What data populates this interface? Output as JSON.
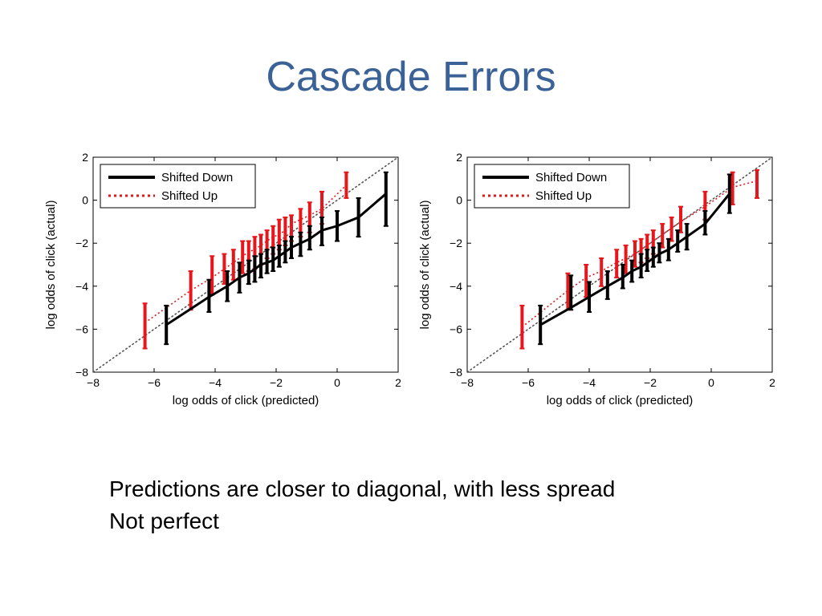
{
  "slide": {
    "title": "Cascade Errors",
    "bullets": [
      "Predictions are closer to diagonal, with less spread",
      "Not perfect"
    ]
  },
  "colors": {
    "title": "#3B6296",
    "shifted_down": "#000000",
    "shifted_up": "#E8161A",
    "diagonal": "#555555"
  },
  "chart_data": [
    {
      "type": "line",
      "title": "",
      "xlabel": "log odds of click (predicted)",
      "ylabel": "log odds of click (actual)",
      "xlim": [
        -8,
        2
      ],
      "ylim": [
        -8,
        2
      ],
      "xticks": [
        "−8",
        "−6",
        "−4",
        "−2",
        "0",
        "2"
      ],
      "yticks": [
        "−8",
        "−6",
        "−4",
        "−2",
        "0",
        "2"
      ],
      "xtick_values": [
        -8,
        -6,
        -4,
        -2,
        0,
        2
      ],
      "ytick_values": [
        -8,
        -6,
        -4,
        -2,
        0,
        2
      ],
      "grid": false,
      "legend_position": "top-left",
      "reference_line": "diagonal",
      "series": [
        {
          "name": "Shifted Down",
          "style": "solid",
          "points": [
            {
              "x": -5.6,
              "y": -5.8,
              "lo": -6.7,
              "hi": -4.9
            },
            {
              "x": -4.2,
              "y": -4.5,
              "lo": -5.2,
              "hi": -3.7
            },
            {
              "x": -3.6,
              "y": -4.0,
              "lo": -4.7,
              "hi": -3.3
            },
            {
              "x": -3.2,
              "y": -3.6,
              "lo": -4.3,
              "hi": -2.9
            },
            {
              "x": -2.9,
              "y": -3.4,
              "lo": -3.9,
              "hi": -2.8
            },
            {
              "x": -2.7,
              "y": -3.2,
              "lo": -3.8,
              "hi": -2.6
            },
            {
              "x": -2.5,
              "y": -3.0,
              "lo": -3.6,
              "hi": -2.5
            },
            {
              "x": -2.3,
              "y": -2.9,
              "lo": -3.4,
              "hi": -2.3
            },
            {
              "x": -2.1,
              "y": -2.8,
              "lo": -3.3,
              "hi": -2.2
            },
            {
              "x": -1.9,
              "y": -2.6,
              "lo": -3.1,
              "hi": -2.1
            },
            {
              "x": -1.7,
              "y": -2.4,
              "lo": -2.9,
              "hi": -1.9
            },
            {
              "x": -1.5,
              "y": -2.2,
              "lo": -2.7,
              "hi": -1.7
            },
            {
              "x": -1.2,
              "y": -2.0,
              "lo": -2.6,
              "hi": -1.5
            },
            {
              "x": -0.9,
              "y": -1.8,
              "lo": -2.3,
              "hi": -1.2
            },
            {
              "x": -0.5,
              "y": -1.4,
              "lo": -2.1,
              "hi": -0.8
            },
            {
              "x": 0.0,
              "y": -1.2,
              "lo": -1.9,
              "hi": -0.5
            },
            {
              "x": 0.7,
              "y": -0.8,
              "lo": -1.7,
              "hi": 0.1
            },
            {
              "x": 1.6,
              "y": 0.3,
              "lo": -1.2,
              "hi": 1.3
            }
          ]
        },
        {
          "name": "Shifted Up",
          "style": "dotted",
          "points": [
            {
              "x": -6.3,
              "y": -5.7,
              "lo": -6.9,
              "hi": -4.8
            },
            {
              "x": -4.8,
              "y": -4.2,
              "lo": -5.1,
              "hi": -3.3
            },
            {
              "x": -4.1,
              "y": -3.6,
              "lo": -4.4,
              "hi": -2.6
            },
            {
              "x": -3.7,
              "y": -3.2,
              "lo": -3.9,
              "hi": -2.5
            },
            {
              "x": -3.4,
              "y": -2.9,
              "lo": -3.7,
              "hi": -2.3
            },
            {
              "x": -3.1,
              "y": -2.6,
              "lo": -3.4,
              "hi": -1.9
            },
            {
              "x": -2.9,
              "y": -2.4,
              "lo": -3.3,
              "hi": -1.9
            },
            {
              "x": -2.7,
              "y": -2.3,
              "lo": -3.2,
              "hi": -1.7
            },
            {
              "x": -2.5,
              "y": -2.1,
              "lo": -3.0,
              "hi": -1.6
            },
            {
              "x": -2.3,
              "y": -1.9,
              "lo": -2.7,
              "hi": -1.4
            },
            {
              "x": -2.1,
              "y": -1.7,
              "lo": -2.5,
              "hi": -1.2
            },
            {
              "x": -1.9,
              "y": -1.6,
              "lo": -2.3,
              "hi": -0.9
            },
            {
              "x": -1.7,
              "y": -1.4,
              "lo": -2.1,
              "hi": -0.8
            },
            {
              "x": -1.5,
              "y": -1.1,
              "lo": -1.9,
              "hi": -0.7
            },
            {
              "x": -1.2,
              "y": -0.9,
              "lo": -1.7,
              "hi": -0.4
            },
            {
              "x": -0.9,
              "y": -0.7,
              "lo": -1.5,
              "hi": -0.1
            },
            {
              "x": -0.5,
              "y": -0.4,
              "lo": -1.1,
              "hi": 0.4
            },
            {
              "x": 0.3,
              "y": 0.7,
              "lo": 0.1,
              "hi": 1.3
            }
          ]
        }
      ]
    },
    {
      "type": "line",
      "title": "",
      "xlabel": "log odds of click (predicted)",
      "ylabel": "log odds of click (actual)",
      "xlim": [
        -8,
        2
      ],
      "ylim": [
        -8,
        2
      ],
      "xticks": [
        "−8",
        "−6",
        "−4",
        "−2",
        "0",
        "2"
      ],
      "yticks": [
        "−8",
        "−6",
        "−4",
        "−2",
        "0",
        "2"
      ],
      "xtick_values": [
        -8,
        -6,
        -4,
        -2,
        0,
        2
      ],
      "ytick_values": [
        -8,
        -6,
        -4,
        -2,
        0,
        2
      ],
      "grid": false,
      "legend_position": "top-left",
      "reference_line": "diagonal",
      "series": [
        {
          "name": "Shifted Down",
          "style": "solid",
          "points": [
            {
              "x": -5.6,
              "y": -5.8,
              "lo": -6.7,
              "hi": -4.9
            },
            {
              "x": -4.6,
              "y": -5.0,
              "lo": -5.1,
              "hi": -3.5
            },
            {
              "x": -4.0,
              "y": -4.5,
              "lo": -5.2,
              "hi": -3.8
            },
            {
              "x": -3.4,
              "y": -4.0,
              "lo": -4.6,
              "hi": -3.3
            },
            {
              "x": -2.9,
              "y": -3.6,
              "lo": -4.1,
              "hi": -3.0
            },
            {
              "x": -2.6,
              "y": -3.3,
              "lo": -3.8,
              "hi": -2.8
            },
            {
              "x": -2.3,
              "y": -3.1,
              "lo": -3.6,
              "hi": -2.5
            },
            {
              "x": -2.1,
              "y": -2.9,
              "lo": -3.3,
              "hi": -2.3
            },
            {
              "x": -1.9,
              "y": -2.7,
              "lo": -3.1,
              "hi": -2.2
            },
            {
              "x": -1.7,
              "y": -2.5,
              "lo": -2.9,
              "hi": -2.0
            },
            {
              "x": -1.4,
              "y": -2.3,
              "lo": -2.8,
              "hi": -1.8
            },
            {
              "x": -1.1,
              "y": -2.0,
              "lo": -2.4,
              "hi": -1.4
            },
            {
              "x": -0.8,
              "y": -1.7,
              "lo": -2.3,
              "hi": -1.1
            },
            {
              "x": -0.2,
              "y": -1.1,
              "lo": -1.6,
              "hi": -0.5
            },
            {
              "x": 0.6,
              "y": 0.3,
              "lo": -0.6,
              "hi": 1.2
            }
          ]
        },
        {
          "name": "Shifted Up",
          "style": "dotted",
          "points": [
            {
              "x": -6.2,
              "y": -5.9,
              "lo": -6.9,
              "hi": -4.9
            },
            {
              "x": -4.7,
              "y": -4.2,
              "lo": -5.1,
              "hi": -3.4
            },
            {
              "x": -4.1,
              "y": -3.6,
              "lo": -4.5,
              "hi": -3.0
            },
            {
              "x": -3.6,
              "y": -3.3,
              "lo": -4.0,
              "hi": -2.7
            },
            {
              "x": -3.1,
              "y": -2.9,
              "lo": -3.6,
              "hi": -2.3
            },
            {
              "x": -2.8,
              "y": -2.7,
              "lo": -3.4,
              "hi": -2.1
            },
            {
              "x": -2.5,
              "y": -2.5,
              "lo": -3.1,
              "hi": -1.9
            },
            {
              "x": -2.3,
              "y": -2.3,
              "lo": -2.9,
              "hi": -1.8
            },
            {
              "x": -2.1,
              "y": -2.1,
              "lo": -2.7,
              "hi": -1.6
            },
            {
              "x": -1.9,
              "y": -1.9,
              "lo": -2.5,
              "hi": -1.4
            },
            {
              "x": -1.6,
              "y": -1.6,
              "lo": -2.2,
              "hi": -1.1
            },
            {
              "x": -1.3,
              "y": -1.3,
              "lo": -1.9,
              "hi": -0.8
            },
            {
              "x": -1.0,
              "y": -1.0,
              "lo": -1.5,
              "hi": -0.3
            },
            {
              "x": -0.2,
              "y": -0.3,
              "lo": -0.9,
              "hi": 0.4
            },
            {
              "x": 0.7,
              "y": 0.6,
              "lo": -0.2,
              "hi": 1.3
            },
            {
              "x": 1.5,
              "y": 0.9,
              "lo": 0.1,
              "hi": 1.4
            }
          ]
        }
      ]
    }
  ]
}
